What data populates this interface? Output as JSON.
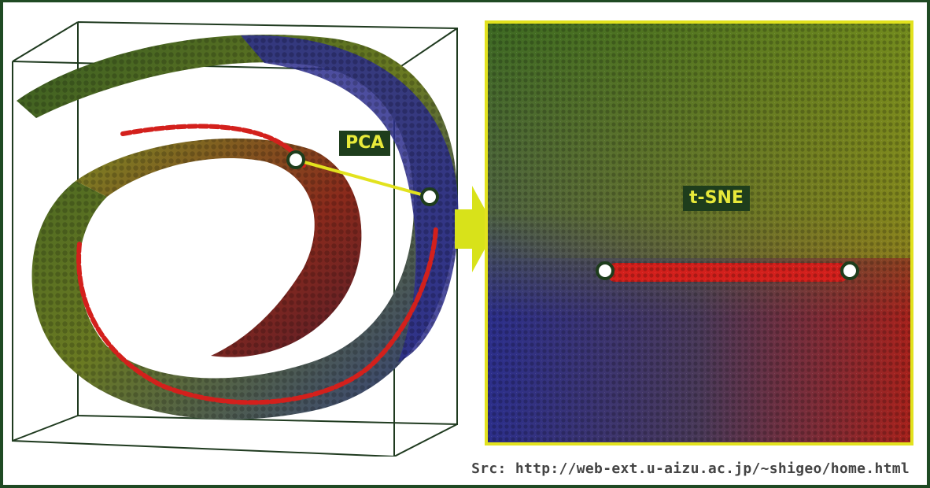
{
  "labels": {
    "pca": "PCA",
    "tsne": "t-SNE"
  },
  "source": "Src: http://web-ext.u-aizu.ac.jp/~shigeo/home.html",
  "colors": {
    "frame": "#1f4a23",
    "label_bg": "#1e3d1c",
    "label_text": "#e8ea3a",
    "arrow": "#d8e21a",
    "connector": "#e2e21e",
    "red_path": "#d3201c",
    "blue": "#2e2f8e",
    "green": "#506c1c",
    "olive": "#7c8a1c"
  }
}
